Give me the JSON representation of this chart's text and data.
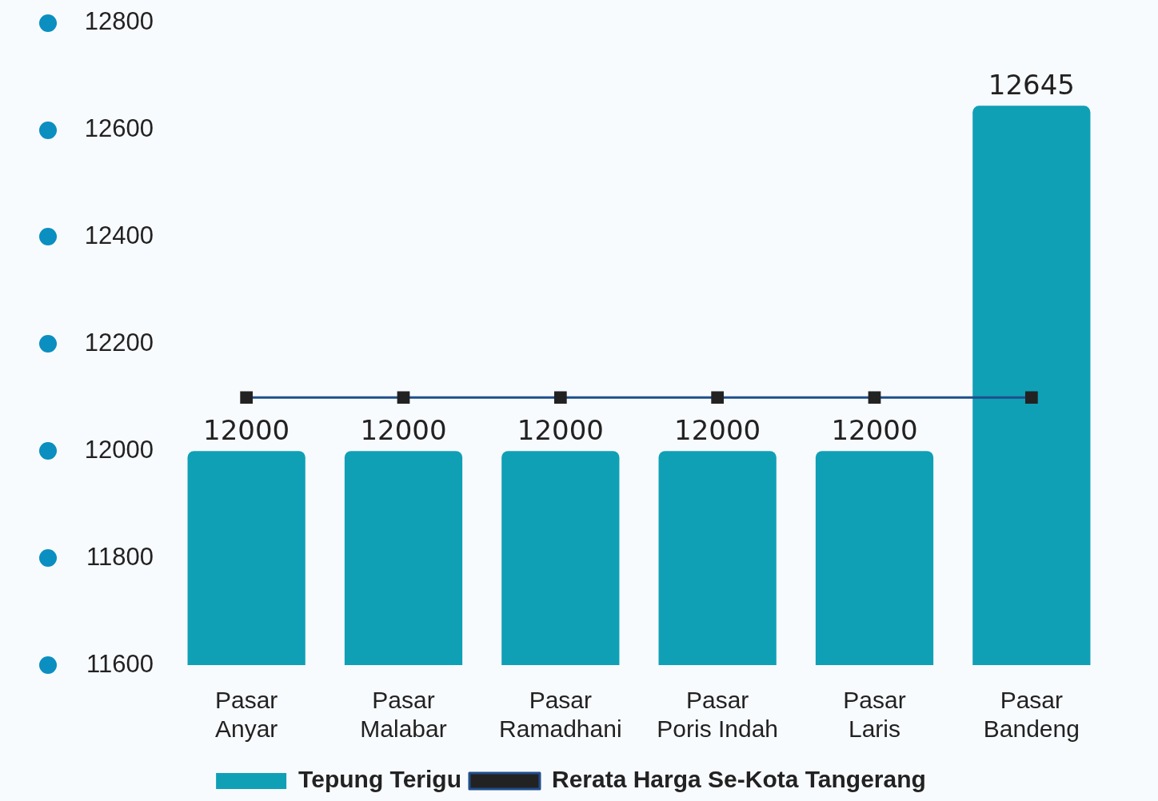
{
  "chart_data": {
    "type": "bar",
    "categories": [
      "Pasar Anyar",
      "Pasar Malabar",
      "Pasar Ramadhani",
      "Pasar Poris Indah",
      "Pasar Laris",
      "Pasar Bandeng"
    ],
    "series": [
      {
        "name": "Tepung Terigu",
        "color": "#0fa0b6",
        "values": [
          12000,
          12000,
          12000,
          12000,
          12000,
          12645
        ],
        "value_labels": [
          "12000",
          "12000",
          "12000",
          "12000",
          "12000",
          "12645"
        ]
      },
      {
        "name": "Rerata Harga Se-Kota Tangerang",
        "type": "line",
        "color": "#1f4e8c",
        "values": [
          12100,
          12100,
          12100,
          12100,
          12100,
          12100
        ]
      }
    ],
    "ylim": [
      11600,
      12800
    ],
    "yticks": [
      11600,
      11800,
      12000,
      12200,
      12400,
      12600,
      12800
    ],
    "grid": false,
    "legend": "bottom",
    "marker": "square",
    "line_style": "solid"
  }
}
